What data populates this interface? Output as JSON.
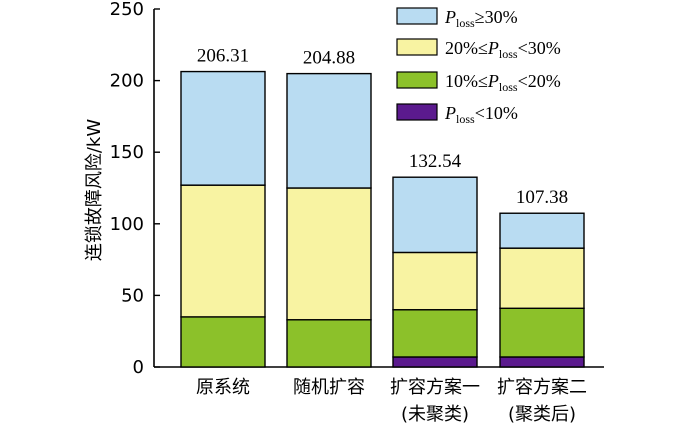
{
  "chart_data": {
    "type": "bar",
    "stacked": true,
    "ylabel": "连锁故障风险/kW",
    "ylim": [
      0,
      250
    ],
    "yticks": [
      0,
      50,
      100,
      150,
      200,
      250
    ],
    "categories": [
      [
        "原系统"
      ],
      [
        "随机扩容"
      ],
      [
        "扩容方案一",
        "(未聚类)"
      ],
      [
        "扩容方案二",
        "(聚类后)"
      ]
    ],
    "totals": [
      "206.31",
      "204.88",
      "132.54",
      "107.38"
    ],
    "series": [
      {
        "name": "P_loss<10%",
        "color": "#5b1a8e",
        "values": [
          0,
          0,
          7,
          7
        ]
      },
      {
        "name": "10%≤P_loss<20%",
        "color": "#8cc12a",
        "values": [
          35,
          33,
          33,
          34
        ]
      },
      {
        "name": "20%≤P_loss<30%",
        "color": "#f8f3a2",
        "values": [
          92,
          92,
          40,
          42
        ]
      },
      {
        "name": "P_loss≥30%",
        "color": "#b9dcf2",
        "values": [
          79.31,
          79.88,
          52.54,
          24.38
        ]
      }
    ],
    "legend": {
      "placement": "top-right",
      "items": [
        {
          "color": "#b9dcf2",
          "pre": "",
          "sub": "loss",
          "post": "≥30%"
        },
        {
          "color": "#f8f3a2",
          "pre": "20%≤",
          "sub": "loss",
          "post": "<30%"
        },
        {
          "color": "#8cc12a",
          "pre": "10%≤",
          "sub": "loss",
          "post": "<20%"
        },
        {
          "color": "#5b1a8e",
          "pre": "",
          "sub": "loss",
          "post": "<10%"
        }
      ]
    }
  }
}
